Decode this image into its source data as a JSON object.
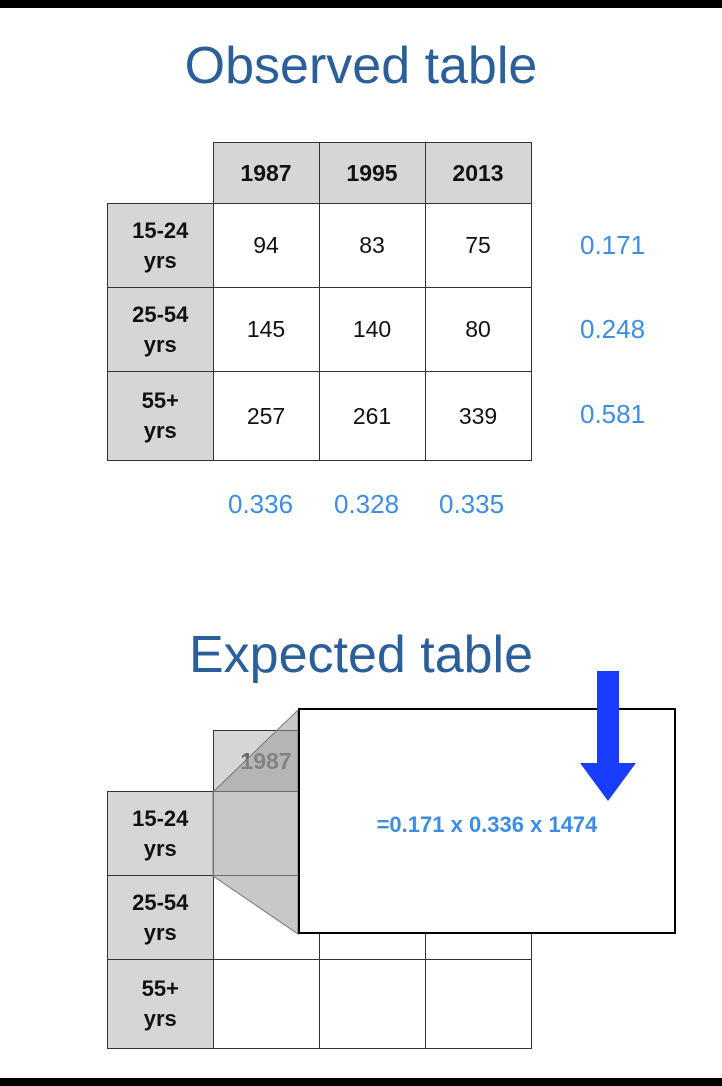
{
  "observed": {
    "title": "Observed table",
    "columns": [
      "1987",
      "1995",
      "2013"
    ],
    "rows": [
      {
        "label_line1": "15-24",
        "label_line2": "yrs",
        "values": [
          "94",
          "83",
          "75"
        ],
        "marginal": "0.171"
      },
      {
        "label_line1": "25-54",
        "label_line2": "yrs",
        "values": [
          "145",
          "140",
          "80"
        ],
        "marginal": "0.248"
      },
      {
        "label_line1": "55+",
        "label_line2": "yrs",
        "values": [
          "257",
          "261",
          "339"
        ],
        "marginal": "0.581"
      }
    ],
    "column_marginals": [
      "0.336",
      "0.328",
      "0.335"
    ]
  },
  "expected": {
    "title": "Expected table",
    "visible_column": "1987",
    "rows": [
      {
        "label_line1": "15-24",
        "label_line2": "yrs"
      },
      {
        "label_line1": "25-54",
        "label_line2": "yrs"
      },
      {
        "label_line1": "55+",
        "label_line2": "yrs"
      }
    ],
    "formula": "=0.171 x 0.336 x 1474"
  },
  "colors": {
    "title": "#2b5f9a",
    "marginal": "#3d8ee0",
    "header_fill": "#d6d6d6",
    "arrow": "#1a3cff"
  }
}
